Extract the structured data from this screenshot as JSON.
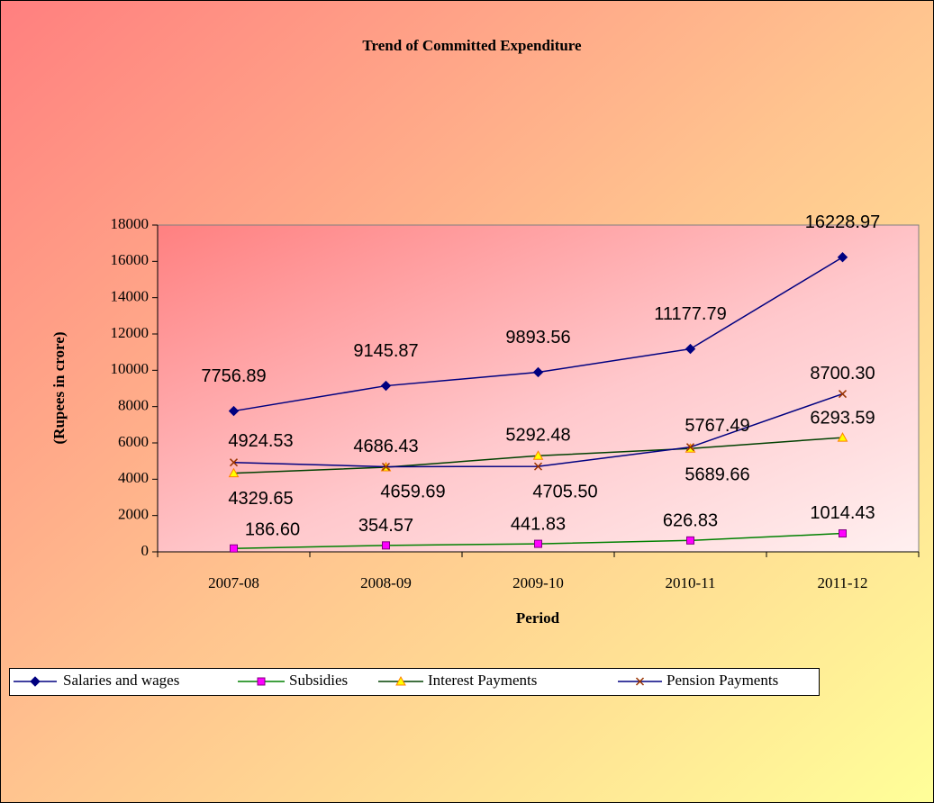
{
  "chart_data": {
    "type": "line",
    "title": "Trend of Committed Expenditure",
    "x_label": "Period",
    "y_label": "(Rupees in crore)",
    "categories": [
      "2007-08",
      "2008-09",
      "2009-10",
      "2010-11",
      "2011-12"
    ],
    "ylim": [
      0,
      18000
    ],
    "yticks": [
      0,
      2000,
      4000,
      6000,
      8000,
      10000,
      12000,
      14000,
      16000,
      18000
    ],
    "grid": false,
    "legend": "bottom",
    "series": [
      {
        "name": "Salaries and wages",
        "color": "#000080",
        "marker": "diamond",
        "marker_color": "#000080",
        "values": [
          7756.89,
          9145.87,
          9893.56,
          11177.79,
          16228.97
        ],
        "value_labels": [
          "7756.89",
          "9145.87",
          "9893.56",
          "11177.79",
          "16228.97"
        ]
      },
      {
        "name": "Subsidies",
        "color": "#008000",
        "marker": "square",
        "marker_color": "#ff00ff",
        "values": [
          186.6,
          354.57,
          441.83,
          626.83,
          1014.43
        ],
        "value_labels": [
          "186.60",
          "354.57",
          "441.83",
          "626.83",
          "1014.43"
        ]
      },
      {
        "name": "Interest Payments",
        "color": "#004000",
        "marker": "triangle",
        "marker_color": "#ffff00",
        "values": [
          4329.65,
          4659.69,
          5292.48,
          5689.66,
          6293.59
        ],
        "value_labels": [
          "4329.65",
          "4659.69",
          "5292.48",
          "5689.66",
          "6293.59"
        ]
      },
      {
        "name": "Pension Payments",
        "color": "#000080",
        "marker": "x",
        "marker_color": "#993300",
        "values": [
          4924.53,
          4686.43,
          4705.5,
          5767.49,
          8700.3
        ],
        "value_labels": [
          "4924.53",
          "4686.43",
          "4705.50",
          "5767.49",
          "8700.30"
        ]
      }
    ]
  }
}
